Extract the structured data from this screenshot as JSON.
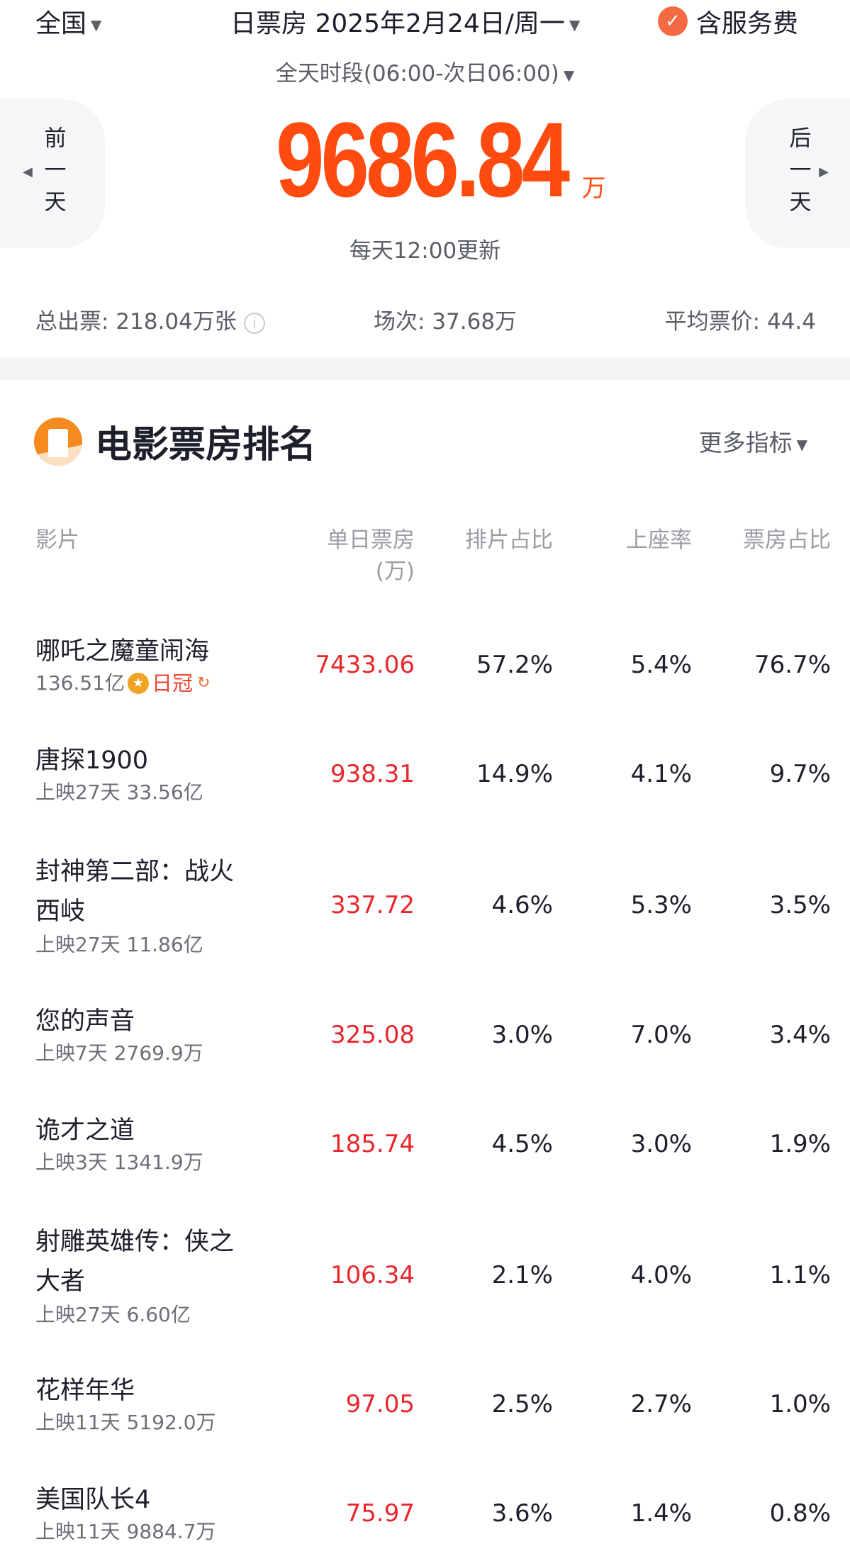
{
  "header": {
    "region": "全国",
    "date_label": "日票房 2025年2月24日/周一",
    "service_fee": "含服务费",
    "period": "全天时段(06:00-次日06:00)"
  },
  "nav": {
    "prev": "前一天",
    "next": "后一天"
  },
  "summary": {
    "total_box_office": "9686.84",
    "unit": "万",
    "update_note": "每天12:00更新",
    "tickets": "总出票: 218.04万张",
    "shows": "场次: 37.68万",
    "avg_price": "平均票价: 44.4"
  },
  "section": {
    "title": "电影票房排名",
    "more": "更多指标"
  },
  "columns": {
    "film": "影片",
    "box": "单日票房",
    "box_unit": "(万)",
    "schedule": "排片占比",
    "occupancy": "上座率",
    "share": "票房占比"
  },
  "colors": {
    "accent": "#ff4b10",
    "box_value": "#e8262c"
  },
  "rows": [
    {
      "name": "哪吒之魔童闹海",
      "sub": "136.51亿",
      "badge": "日冠",
      "box": "7433.06",
      "schedule": "57.2%",
      "occupancy": "5.4%",
      "share": "76.7%"
    },
    {
      "name": "唐探1900",
      "sub": "上映27天 33.56亿",
      "box": "938.31",
      "schedule": "14.9%",
      "occupancy": "4.1%",
      "share": "9.7%"
    },
    {
      "name": "封神第二部：战火西岐",
      "sub": "上映27天 11.86亿",
      "box": "337.72",
      "schedule": "4.6%",
      "occupancy": "5.3%",
      "share": "3.5%"
    },
    {
      "name": "您的声音",
      "sub": "上映7天 2769.9万",
      "box": "325.08",
      "schedule": "3.0%",
      "occupancy": "7.0%",
      "share": "3.4%"
    },
    {
      "name": "诡才之道",
      "sub": "上映3天 1341.9万",
      "box": "185.74",
      "schedule": "4.5%",
      "occupancy": "3.0%",
      "share": "1.9%"
    },
    {
      "name": "射雕英雄传：侠之大者",
      "sub": "上映27天 6.60亿",
      "box": "106.34",
      "schedule": "2.1%",
      "occupancy": "4.0%",
      "share": "1.1%"
    },
    {
      "name": "花样年华",
      "sub": "上映11天 5192.0万",
      "box": "97.05",
      "schedule": "2.5%",
      "occupancy": "2.7%",
      "share": "1.0%"
    },
    {
      "name": "美国队长4",
      "sub": "上映11天 9884.7万",
      "box": "75.97",
      "schedule": "3.6%",
      "occupancy": "1.4%",
      "share": "0.8%"
    }
  ]
}
